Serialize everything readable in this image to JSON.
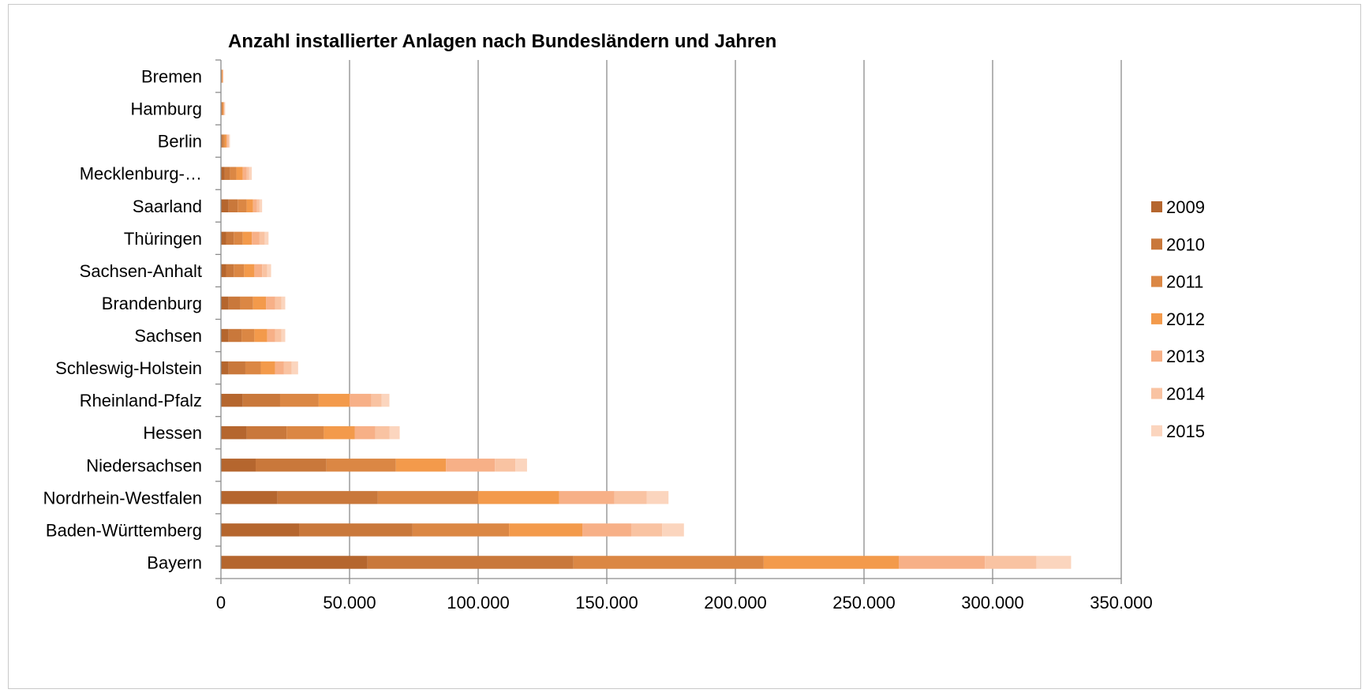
{
  "chart_data": {
    "type": "bar",
    "orientation": "horizontal",
    "stacked": true,
    "title": "Anzahl installierter Anlagen nach Bundesländern und Jahren",
    "xlabel": "",
    "ylabel": "",
    "xlim": [
      0,
      350000
    ],
    "x_ticks": [
      0,
      50000,
      100000,
      150000,
      200000,
      250000,
      300000,
      350000
    ],
    "x_tick_labels": [
      "0",
      "50.000",
      "100.000",
      "150.000",
      "200.000",
      "250.000",
      "300.000",
      "350.000"
    ],
    "grid": "vertical",
    "legend_position": "right",
    "categories": [
      "Bremen",
      "Hamburg",
      "Berlin",
      "Mecklenburg-…",
      "Saarland",
      "Thüringen",
      "Sachsen-Anhalt",
      "Brandenburg",
      "Sachsen",
      "Schleswig-Holstein",
      "Rheinland-Pfalz",
      "Hessen",
      "Niedersachsen",
      "Nordrhein-Westfalen",
      "Baden-Württemberg",
      "Bayern"
    ],
    "series": [
      {
        "name": "2009",
        "color": "#b5662e",
        "values": [
          100,
          200,
          300,
          1500,
          3000,
          2000,
          2000,
          3000,
          3000,
          3000,
          8500,
          10000,
          13500,
          22000,
          30500,
          57000
        ]
      },
      {
        "name": "2010",
        "color": "#c9783b",
        "values": [
          150,
          250,
          500,
          2000,
          3500,
          3000,
          3000,
          4500,
          5000,
          6500,
          14500,
          15500,
          27500,
          39000,
          44000,
          80000
        ]
      },
      {
        "name": "2011",
        "color": "#db8744",
        "values": [
          200,
          300,
          700,
          2500,
          3500,
          3500,
          4000,
          5000,
          5000,
          6000,
          15000,
          14500,
          27000,
          39000,
          37500,
          74000
        ]
      },
      {
        "name": "2012",
        "color": "#f39a4b",
        "values": [
          200,
          300,
          700,
          2500,
          2500,
          3500,
          4000,
          5000,
          5000,
          5500,
          12000,
          12000,
          19500,
          31500,
          28500,
          52500
        ]
      },
      {
        "name": "2013",
        "color": "#f7b087",
        "values": [
          150,
          200,
          500,
          1500,
          1500,
          3000,
          3000,
          3500,
          3000,
          3500,
          8500,
          8000,
          19000,
          21500,
          19000,
          33500
        ]
      },
      {
        "name": "2014",
        "color": "#f9c3a2",
        "values": [
          100,
          200,
          400,
          1000,
          1000,
          2000,
          2000,
          2500,
          2500,
          3000,
          4000,
          5500,
          8000,
          12500,
          12000,
          20000
        ]
      },
      {
        "name": "2015",
        "color": "#fbd5be",
        "values": [
          100,
          200,
          400,
          1000,
          1000,
          1500,
          1500,
          1500,
          1500,
          2500,
          3000,
          4000,
          4500,
          8500,
          8500,
          13500
        ]
      }
    ]
  }
}
